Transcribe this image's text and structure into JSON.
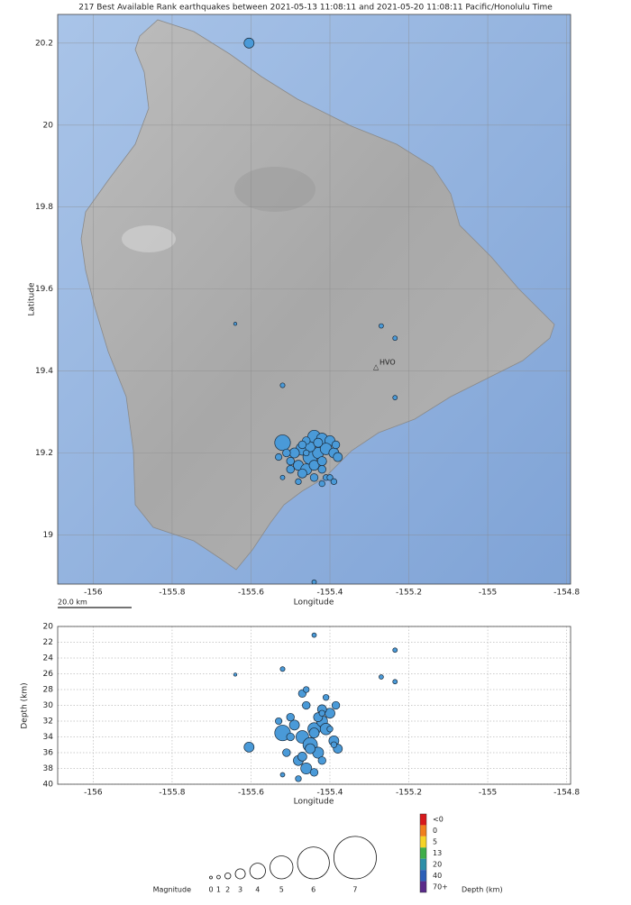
{
  "chart_data": [
    {
      "type": "map-scatter",
      "title": "217 Best Available Rank earthquakes between 2021-05-13 11:08:11 and 2021-05-20 11:08:11 Pacific/Honolulu Time",
      "x_label": "Longitude",
      "y_label": "Latitude",
      "scale_bar": "20.0 km",
      "annotations": [
        "HVO"
      ],
      "x": [
        -155.605,
        -155.64,
        -155.27,
        -155.235,
        -155.235,
        -155.52,
        -155.44,
        -155.52,
        -155.44,
        -155.42,
        -155.4,
        -155.47,
        -155.45,
        -155.49,
        -155.43,
        -155.41,
        -155.39,
        -155.48,
        -155.46,
        -155.44,
        -155.5,
        -155.47,
        -155.42,
        -155.385,
        -155.5,
        -155.45,
        -155.43,
        -155.46,
        -155.42,
        -155.38,
        -155.51,
        -155.53,
        -155.41,
        -155.4,
        -155.42,
        -155.39,
        -155.44,
        -155.47,
        -155.46,
        -155.52,
        -155.48
      ],
      "y": [
        20.2,
        19.515,
        19.51,
        19.48,
        19.335,
        19.365,
        18.885,
        19.225,
        19.24,
        19.235,
        19.23,
        19.21,
        19.19,
        19.2,
        19.2,
        19.21,
        19.2,
        19.17,
        19.16,
        19.17,
        19.18,
        19.15,
        19.18,
        19.22,
        19.16,
        19.215,
        19.225,
        19.23,
        19.16,
        19.19,
        19.2,
        19.19,
        19.14,
        19.14,
        19.125,
        19.13,
        19.14,
        19.22,
        19.2,
        19.14,
        19.13
      ],
      "sizes": [
        3,
        0.8,
        1.5,
        1.5,
        1.5,
        1.6,
        1.5,
        4,
        3.5,
        3.2,
        3,
        3.5,
        3.8,
        3,
        3.2,
        3.3,
        3,
        3,
        3.2,
        3,
        2.5,
        2.8,
        2.8,
        2.5,
        2.5,
        3,
        2.8,
        2.5,
        2.5,
        2.8,
        2.5,
        2.2,
        2,
        2,
        2,
        2,
        2.5,
        2.5,
        2,
        1.5,
        2
      ],
      "color": "#4a9ad8",
      "xlim": [
        -156.09,
        -154.79
      ],
      "ylim": [
        18.88,
        20.27
      ],
      "xticks": [
        -156,
        -155.8,
        -155.6,
        -155.4,
        -155.2,
        -155,
        -154.8
      ],
      "yticks": [
        19,
        19.2,
        19.4,
        19.6,
        19.8,
        20,
        20.2
      ],
      "grid": true
    },
    {
      "type": "scatter",
      "x_label": "Longitude",
      "y_label": "Depth (km)",
      "x": [
        -155.605,
        -155.64,
        -155.27,
        -155.235,
        -155.235,
        -155.52,
        -155.44,
        -155.52,
        -155.44,
        -155.42,
        -155.4,
        -155.47,
        -155.45,
        -155.49,
        -155.43,
        -155.41,
        -155.39,
        -155.48,
        -155.46,
        -155.44,
        -155.5,
        -155.47,
        -155.42,
        -155.385,
        -155.5,
        -155.45,
        -155.43,
        -155.46,
        -155.42,
        -155.38,
        -155.51,
        -155.53,
        -155.41,
        -155.4,
        -155.42,
        -155.39,
        -155.44,
        -155.47,
        -155.46,
        -155.52,
        -155.48
      ],
      "y": [
        35.3,
        26.1,
        26.4,
        27.0,
        23.0,
        25.4,
        21.1,
        33.5,
        33,
        32,
        31,
        34,
        35,
        32.5,
        36,
        33,
        34.5,
        37,
        38,
        33.5,
        31.5,
        36.5,
        30.5,
        30,
        34,
        35.5,
        31.5,
        30,
        37,
        35.5,
        36,
        32,
        29,
        33,
        31,
        35,
        38.5,
        28.5,
        28,
        38.8,
        39.3
      ],
      "sizes": [
        3,
        0.8,
        1.5,
        1.5,
        1.5,
        1.6,
        1.5,
        4,
        3.5,
        3.2,
        3,
        3.5,
        3.8,
        3,
        3.2,
        3.3,
        3,
        3,
        3.2,
        3,
        2.5,
        2.8,
        2.8,
        2.5,
        2.5,
        3,
        2.8,
        2.5,
        2.5,
        2.8,
        2.5,
        2.2,
        2,
        2,
        2,
        2,
        2.5,
        2.5,
        2,
        1.5,
        2
      ],
      "color": "#4a9ad8",
      "xlim": [
        -156.09,
        -154.79
      ],
      "ylim": [
        40,
        20
      ],
      "xticks": [
        -156,
        -155.8,
        -155.6,
        -155.4,
        -155.2,
        -155,
        -154.8
      ],
      "yticks": [
        20,
        22,
        24,
        26,
        28,
        30,
        32,
        34,
        36,
        38,
        40
      ],
      "grid": true
    },
    {
      "type": "legend",
      "size_label": "Magnitude",
      "sizes": [
        0,
        1,
        2,
        3,
        4,
        5,
        6,
        7
      ],
      "color_label": "Depth (km)",
      "color_stops": [
        {
          "label": "<0",
          "color": "#d7191c"
        },
        {
          "value": 0,
          "color": "#f07f1e"
        },
        {
          "value": 5,
          "color": "#f5d327"
        },
        {
          "value": 13,
          "color": "#3fae49"
        },
        {
          "value": 20,
          "color": "#2c8fa8"
        },
        {
          "value": 40,
          "color": "#2b5fb8"
        },
        {
          "label": "70+",
          "color": "#5a2a8a"
        }
      ]
    }
  ]
}
